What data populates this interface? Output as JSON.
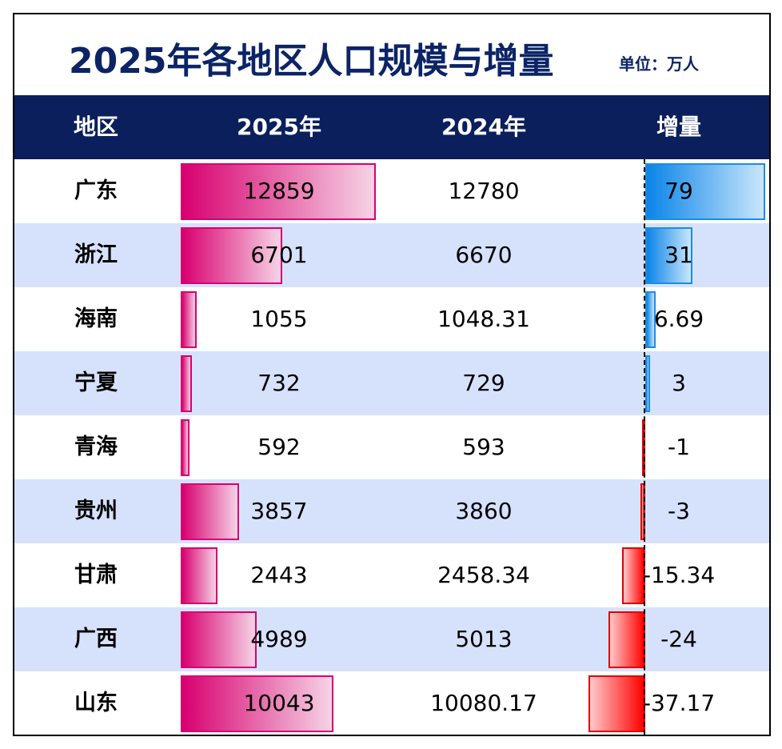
{
  "title": "2025年各地区人口规模与增量",
  "unit": "单位：万人",
  "chart_data": {
    "type": "table",
    "columns": [
      "地区",
      "2025年",
      "2024年",
      "增量"
    ],
    "rows": [
      {
        "region": "广东",
        "y2025": "12859",
        "y2024": "12780",
        "delta": "79"
      },
      {
        "region": "浙江",
        "y2025": "6701",
        "y2024": "6670",
        "delta": "31"
      },
      {
        "region": "海南",
        "y2025": "1055",
        "y2024": "1048.31",
        "delta": "6.69"
      },
      {
        "region": "宁夏",
        "y2025": "732",
        "y2024": "729",
        "delta": "3"
      },
      {
        "region": "青海",
        "y2025": "592",
        "y2024": "593",
        "delta": "-1"
      },
      {
        "region": "贵州",
        "y2025": "3857",
        "y2024": "3860",
        "delta": "-3"
      },
      {
        "region": "甘肃",
        "y2025": "2443",
        "y2024": "2458.34",
        "delta": "-15.34"
      },
      {
        "region": "广西",
        "y2025": "4989",
        "y2024": "5013",
        "delta": "-24"
      },
      {
        "region": "山东",
        "y2025": "10043",
        "y2024": "10080.17",
        "delta": "-37.17"
      }
    ],
    "data_bars": {
      "2025年": "#d8006f",
      "增量_positive": "#0a84e8",
      "增量_negative": "#ff0000"
    }
  },
  "colors": {
    "header_bg": "#0a1f5c",
    "alt_row": "#d6e2fb",
    "title": "#0c2466"
  }
}
